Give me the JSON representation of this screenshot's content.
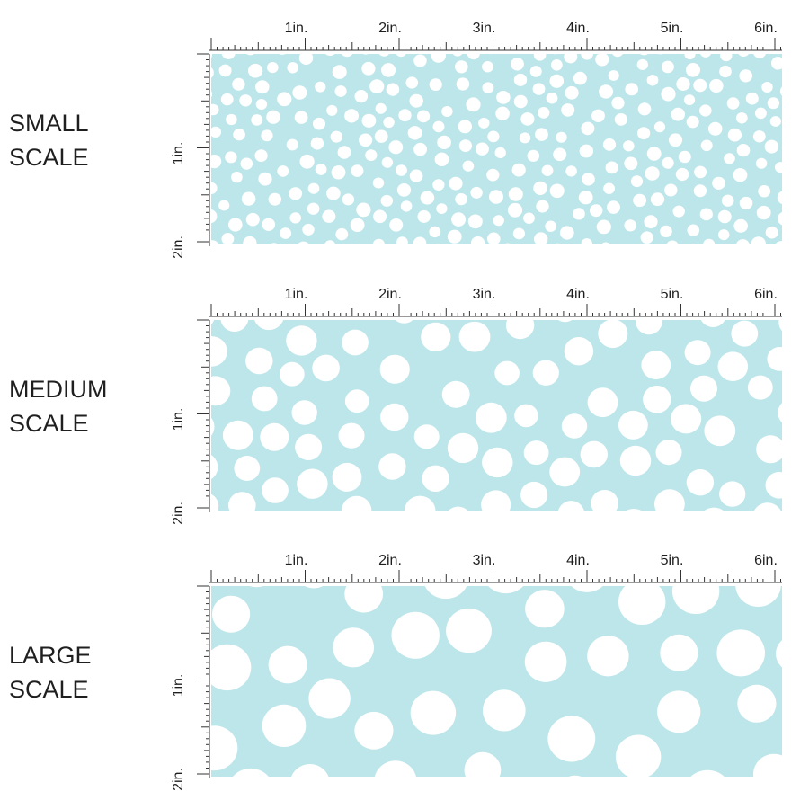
{
  "colors": {
    "swatch": "#bde6ea",
    "dot": "#ffffff",
    "ruler": "#333333"
  },
  "ruler": {
    "h_labels": [
      "1in.",
      "2in.",
      "3in.",
      "4in.",
      "5in.",
      "6in."
    ],
    "v_labels": [
      "1in.",
      "2in."
    ]
  },
  "panels": [
    {
      "label_line1": "SMALL",
      "label_line2": "SCALE"
    },
    {
      "label_line1": "MEDIUM",
      "label_line2": "SCALE"
    },
    {
      "label_line1": "LARGE",
      "label_line2": "SCALE"
    }
  ]
}
